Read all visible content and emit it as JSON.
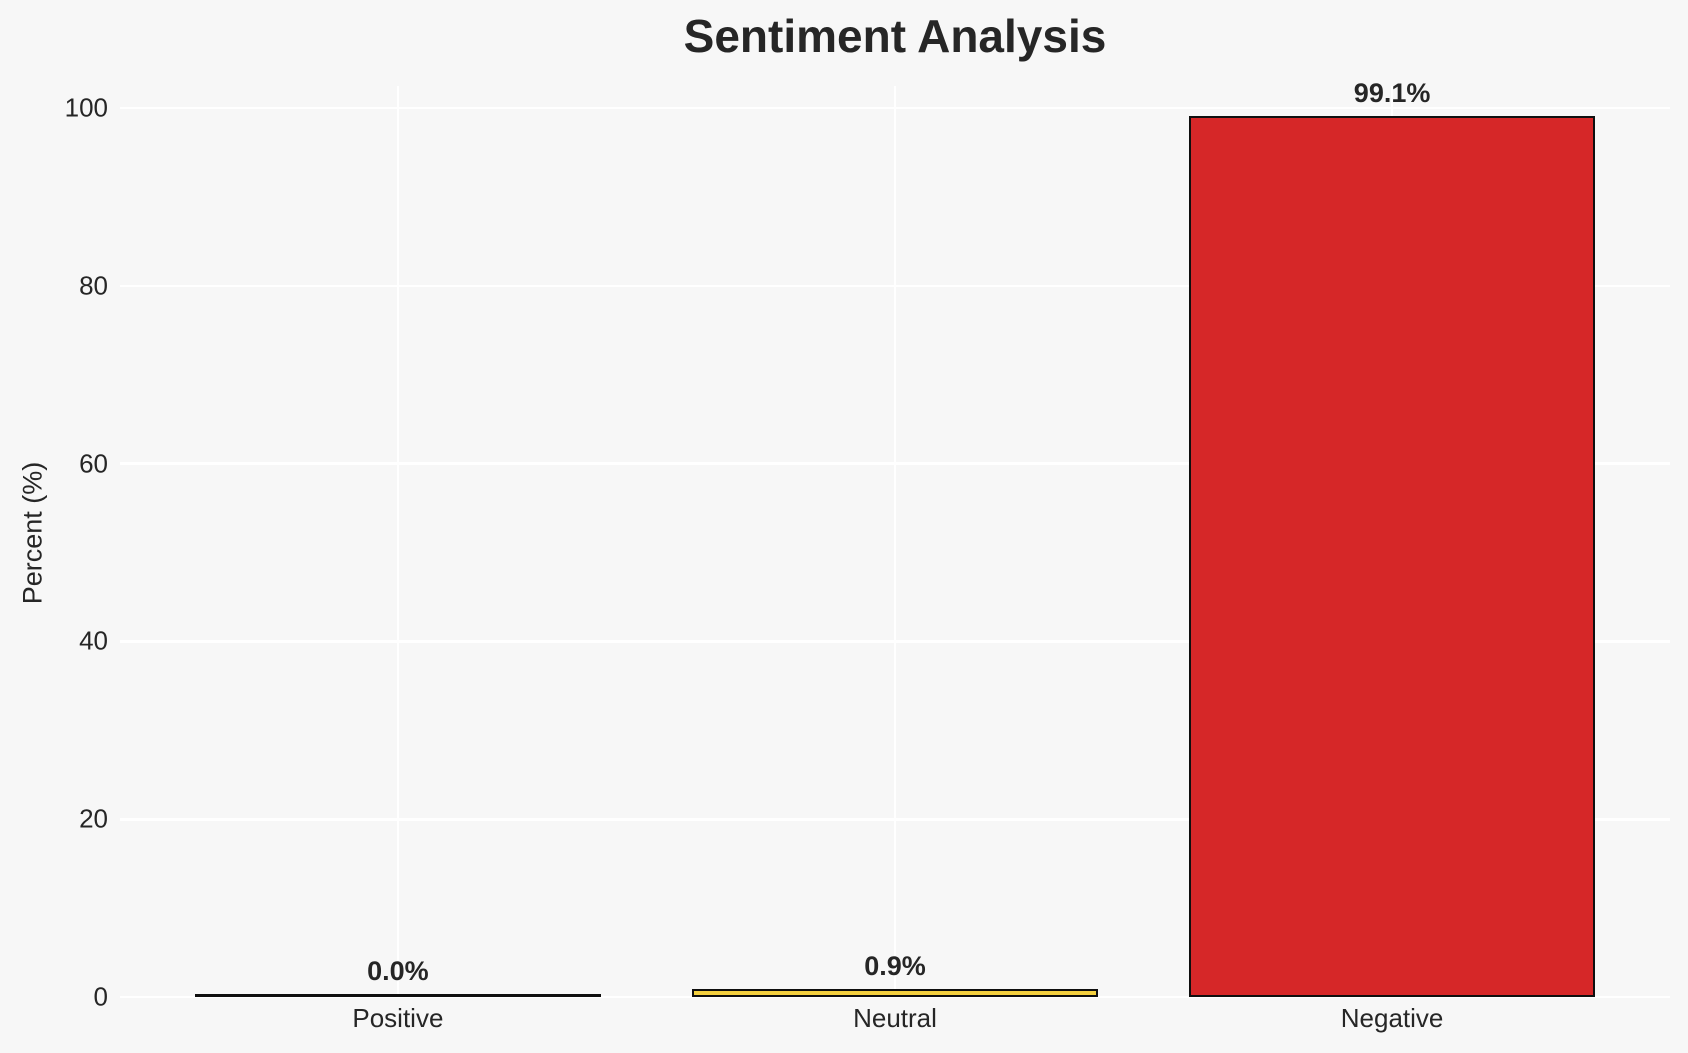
{
  "chart_data": {
    "type": "bar",
    "title": "Sentiment Analysis",
    "xlabel": "",
    "ylabel": "Percent (%)",
    "categories": [
      "Positive",
      "Neutral",
      "Negative"
    ],
    "values": [
      0.0,
      0.9,
      99.1
    ],
    "value_labels": [
      "0.0%",
      "0.9%",
      "99.1%"
    ],
    "bar_colors": [
      "#2ca02c",
      "#f4d03f",
      "#d62728"
    ],
    "bar_edge_color": "#0f0f0f",
    "yticks": [
      0,
      20,
      40,
      60,
      80,
      100
    ],
    "ytick_labels": [
      "0",
      "20",
      "40",
      "60",
      "80",
      "100"
    ],
    "ylim": [
      0,
      102.5
    ],
    "grid": true,
    "grid_axes": "both",
    "grid_color": "#ffffff",
    "background_color": "#f7f7f7",
    "text_color": "#262626",
    "legend": "none"
  }
}
